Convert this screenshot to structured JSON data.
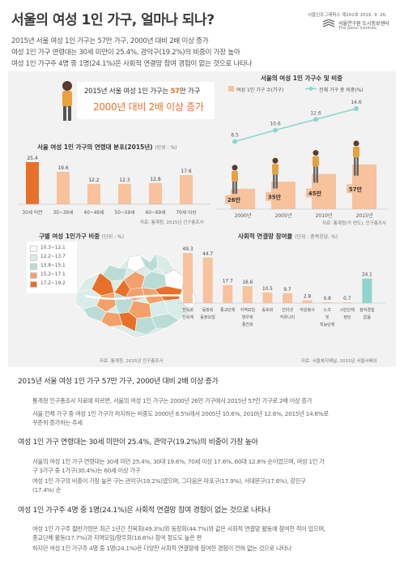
{
  "header": {
    "title": "서울의 여성 1인 가구, 얼마나 되나?",
    "issue": "서울인포그래픽스 제202호 2016. 9. 26.",
    "org_kr": "서울연구원 도시정보센터",
    "org_en": "The Seoul Institute",
    "subtitles": [
      "2015년 서울 여성 1인 가구는 57만 가구, 2000년 대비 2배 이상 증가",
      "여성 1인 가구 연령대는 30세 미만이 25.4%, 관악구(19.2%)의 비중이 가장 높아",
      "여성 1인 가구주 4명 중 1명(24.1%)은 사회적 연결망 참여 경험이 없는 것으로 나타나"
    ]
  },
  "banner": {
    "line1_a": "2015년 서울 여성 1인 가구는 ",
    "line1_b": "57",
    "line1_c": "만 가구",
    "line2": "2000년 대비 2배 이상 증가"
  },
  "colors": {
    "orange": "#e8712a",
    "peach": "#f7c29c",
    "teal": "#8ed6cc",
    "background": "#f2f2f2"
  },
  "chart_data": [
    {
      "id": "trend",
      "type": "bar+line",
      "title": "서울의 여성 1인 가구수 및 비중",
      "legend": [
        "여성 1인 가구 수(가구)",
        "전체 가구 중 비중(%)"
      ],
      "categories": [
        "2000년",
        "2005년",
        "2010년",
        "2015년"
      ],
      "bar_labels": [
        "26만",
        "35만",
        "45만",
        "57만"
      ],
      "bar_values": [
        26,
        35,
        45,
        57
      ],
      "line_values": [
        8.5,
        10.6,
        12.6,
        14.6
      ],
      "source": "자료: 통계청(각 연도), 인구총조사"
    },
    {
      "id": "age",
      "type": "bar",
      "title": "서울 여성 1인 가구의 연령대 분포(2015년)",
      "unit": "(단위 : %)",
      "categories": [
        "30세 미만",
        "30~39세",
        "40~49세",
        "50~59세",
        "60~69세",
        "70세 이상"
      ],
      "values": [
        25.4,
        19.6,
        12.2,
        12.3,
        12.8,
        17.6
      ],
      "source": "자료: 통계청, 2015년 인구총조사"
    },
    {
      "id": "social",
      "type": "bar",
      "title": "사회적 연결망 참여율",
      "unit": "(단위 : 중복응답, %)",
      "categories": [
        "친목회 친목계",
        "동창회 동창모임",
        "종교단체",
        "지역모임 향우회 종친회",
        "동호회",
        "인터넷 커뮤니티",
        "자원봉사",
        "노조 및 직능단체",
        "시민단체 정당",
        "참여경험 없음"
      ],
      "labels": [
        [
          "친목회",
          "친목계"
        ],
        [
          "동창회",
          "동창모임"
        ],
        [
          "종교단체"
        ],
        [
          "지역모임",
          "향우회",
          "종친회"
        ],
        [
          "동호회"
        ],
        [
          "인터넷",
          "커뮤니티"
        ],
        [
          "자원봉사"
        ],
        [
          "노조",
          "및",
          "직능단체"
        ],
        [
          "시민단체",
          "정당"
        ],
        [
          "참여경험",
          "없음"
        ]
      ],
      "values": [
        49.3,
        44.7,
        17.7,
        16.6,
        10.5,
        9.7,
        2.8,
        0.8,
        0.7,
        24.1
      ],
      "source": "자료: 서울복지패널, 2015년 서울서베이"
    },
    {
      "id": "map",
      "type": "choropleth",
      "title": "구별 여성 1인가구 비중",
      "unit": "(단위 : %)",
      "legend": [
        "10.3~12.1",
        "12.2~13.7",
        "13.8~15.1",
        "15.2~17.1",
        "17.2~19.2"
      ],
      "legend_colors": [
        "#ffffff",
        "#d9ece8",
        "#b9ddd6",
        "#f4a06a",
        "#e8712a"
      ],
      "source": "자료: 통계청, 2015년 인구총조사"
    }
  ],
  "article": {
    "sections": [
      {
        "heading": "2015년 서울 여성 1인 가구 57만 가구, 2000년 대비 2배 이상 증가",
        "paragraphs": [
          [
            "통계청 인구총조사 자료에 따르면, 서울의 여성 1인 가구는 2000년 26만 가구에서 2015년 57만 가구로 2배 이상 증가"
          ],
          [
            "서울 전체 가구 중 여성 1인 가구가 차지하는 비중도 2000년 8.5%에서 2005년 10.6%, 2010년 12.6%, 2015년 14.6%로",
            "꾸준히 증가하는 추세"
          ]
        ]
      },
      {
        "heading": "여성 1인 가구 연령대는 30세 미만이 25.4%, 관악구(19.2%)의 비중이 가장 높아",
        "paragraphs": [
          [
            "서울의 여성 1인 가구 연령대는 30세 미만 25.4%, 30대 19.6%, 70세 이상 17.6%, 60대 12.8% 순이었으며, 여성 1인 가",
            "구 3가구 중 1가구(30.4%)는 60세 이상 가구"
          ],
          [
            "여성 1인 가구의 비중이 가장 높은 구는 관악구(19.2%)였으며, 그다음은 마포구(17.9%), 서대문구(17.6%), 광진구",
            "(17.4%) 순"
          ]
        ]
      },
      {
        "heading": "여성 1인 가구주 4명 중 1명(24.1%)은 사회적 연결망 참여 경험이 없는 것으로 나타나",
        "paragraphs": [
          [
            "여성 1인 가구주 절반가량은 최근 1년간 친목회(49.3%)와 동창회(44.7%)와 같은 사회적 연결망 활동에 참여한 적이 있으며,",
            "종교단체 활동(17.7%)과 지역모임/향우회(16.6%) 참여 정도도 높은 편"
          ],
          [
            "하지만 여성 1인 가구주 4명 중 1명(24.1%)은 다양한 사회적 연결망에 참여한 경험이 전혀 없는 것으로 나타나"
          ]
        ]
      }
    ]
  }
}
